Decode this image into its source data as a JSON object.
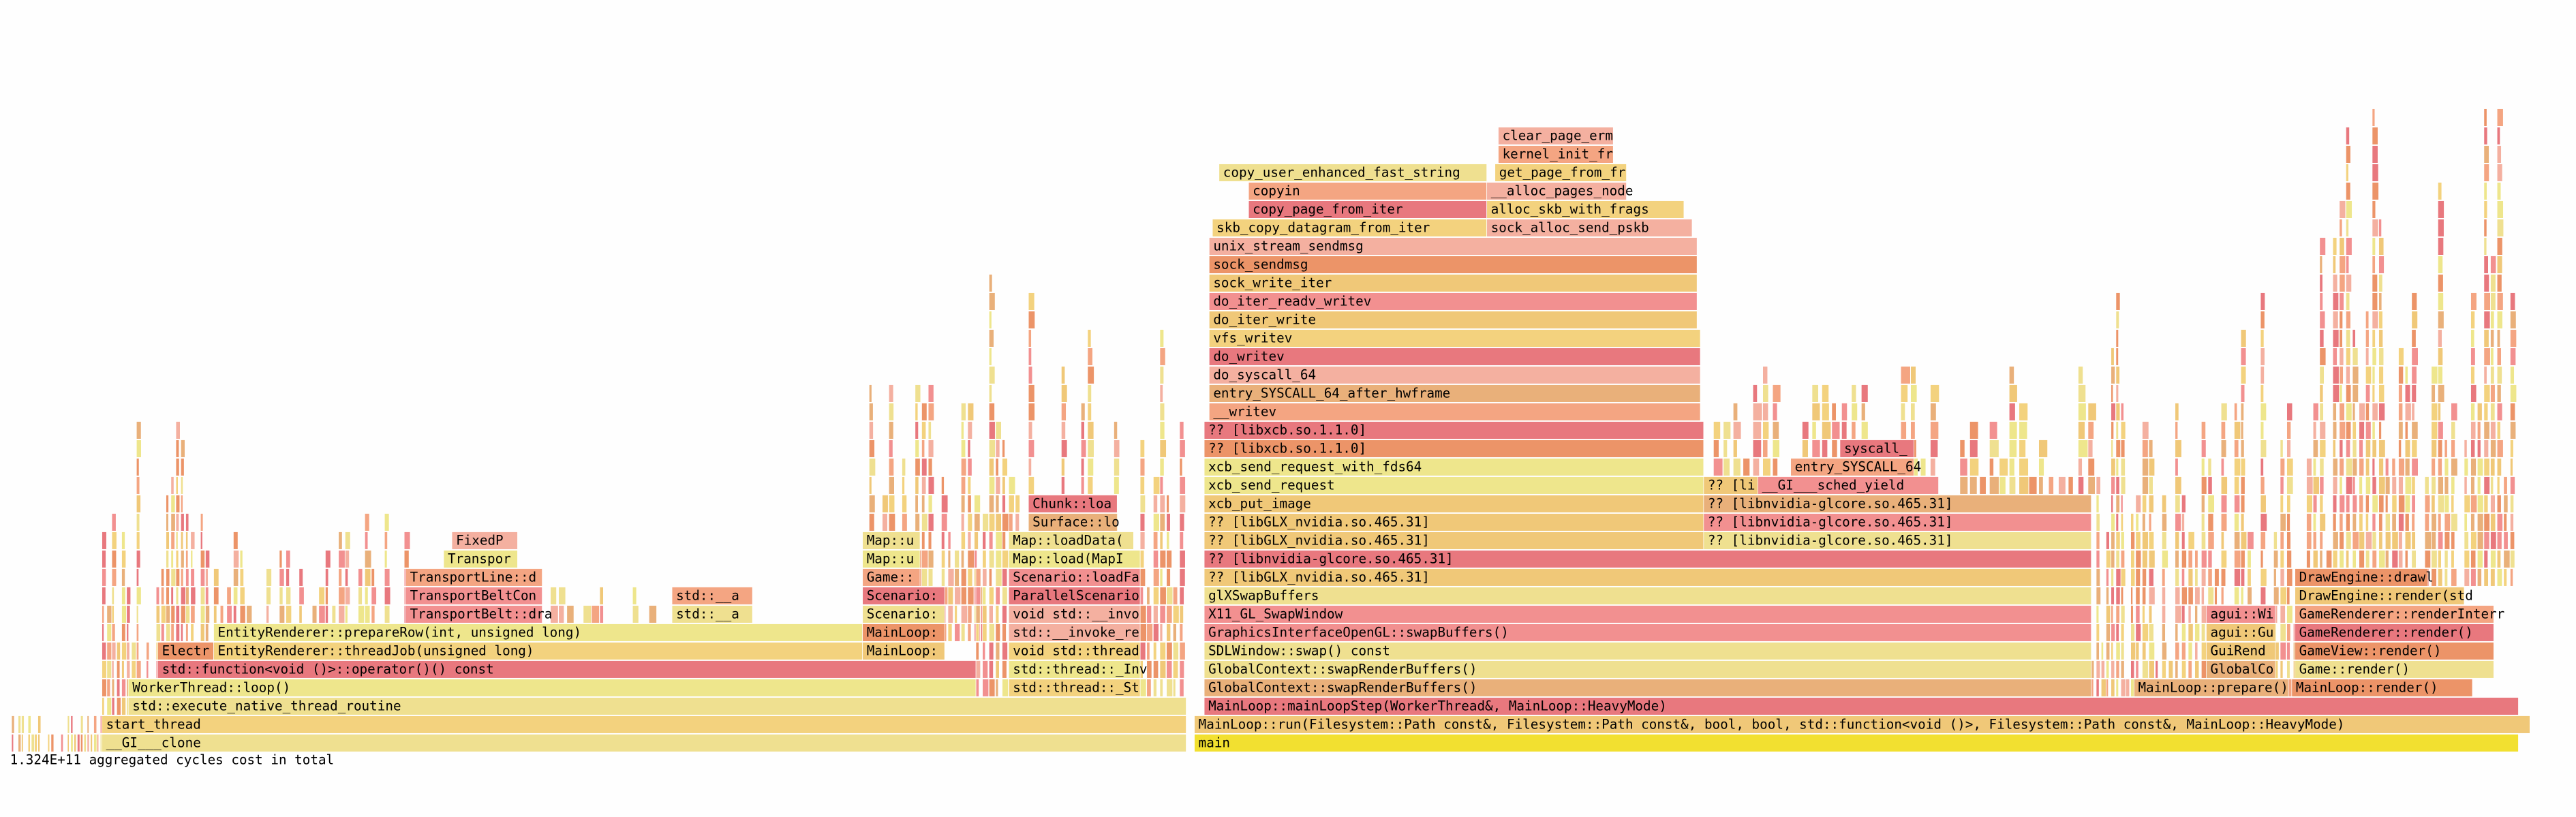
{
  "frames": [
    {
      "label": "__GI___clone"
    },
    {
      "label": "main"
    },
    {
      "label": "start_thread"
    },
    {
      "label": "MainLoop::run(Filesystem::Path const&, Filesystem::Path const&, bool, bool, std::function<void ()>, Filesystem::Path const&, MainLoop::HeavyMode)"
    },
    {
      "label": "std::execute_native_thread_routine"
    },
    {
      "label": "MainLoop::mainLoopStep(WorkerThread&, MainLoop::HeavyMode)"
    },
    {
      "label": "WorkerThread::loop()"
    },
    {
      "label": "std::thread::_St"
    },
    {
      "label": "GlobalContext::swapRenderBuffers()"
    },
    {
      "label": "MainLoop::prepare()"
    },
    {
      "label": "MainLoop::render()"
    },
    {
      "label": "std::function<void ()>::operator()() const"
    },
    {
      "label": "std::thread::_Inv"
    },
    {
      "label": "GlobalContext::swapRenderBuffers()"
    },
    {
      "label": "GlobalCo"
    },
    {
      "label": "Game::render()"
    },
    {
      "label": "Electr"
    },
    {
      "label": "EntityRenderer::threadJob(unsigned long)"
    },
    {
      "label": "MainLoop:"
    },
    {
      "label": "void std::thread"
    },
    {
      "label": "SDLWindow::swap() const"
    },
    {
      "label": "GuiRend"
    },
    {
      "label": "GameView::render()"
    },
    {
      "label": "EntityRenderer::prepareRow(int, unsigned long)"
    },
    {
      "label": "MainLoop:"
    },
    {
      "label": "std::__invoke_re"
    },
    {
      "label": "GraphicsInterfaceOpenGL::swapBuffers()"
    },
    {
      "label": "agui::Gu"
    },
    {
      "label": "GameRenderer::render()"
    },
    {
      "label": "TransportBelt::dra"
    },
    {
      "label": "std::__a"
    },
    {
      "label": "Scenario:"
    },
    {
      "label": "void std::__invo"
    },
    {
      "label": "X11_GL_SwapWindow"
    },
    {
      "label": "agui::Wi"
    },
    {
      "label": "GameRenderer::renderInterr"
    },
    {
      "label": "TransportBeltCon"
    },
    {
      "label": "std::__a"
    },
    {
      "label": "Scenario:"
    },
    {
      "label": "ParallelScenario"
    },
    {
      "label": "glXSwapBuffers"
    },
    {
      "label": "DrawEngine::render(std"
    },
    {
      "label": "TransportLine::d"
    },
    {
      "label": "Game::"
    },
    {
      "label": "Scenario::loadFa"
    },
    {
      "label": "?? [libGLX_nvidia.so.465.31]"
    },
    {
      "label": "DrawEngine::drawl"
    },
    {
      "label": "Transpor"
    },
    {
      "label": "Map::u"
    },
    {
      "label": "Map::load(MapI"
    },
    {
      "label": "?? [libnvidia-glcore.so.465.31]"
    },
    {
      "label": "FixedP"
    },
    {
      "label": "Map::u"
    },
    {
      "label": "Map::loadData("
    },
    {
      "label": "?? [libGLX_nvidia.so.465.31]"
    },
    {
      "label": "?? [libnvidia-glcore.so.465.31]"
    },
    {
      "label": "Surface::lo"
    },
    {
      "label": "?? [libGLX_nvidia.so.465.31]"
    },
    {
      "label": "?? [libnvidia-glcore.so.465.31]"
    },
    {
      "label": "Chunk::loa"
    },
    {
      "label": "xcb_put_image"
    },
    {
      "label": "?? [libnvidia-glcore.so.465.31]"
    },
    {
      "label": "xcb_send_request"
    },
    {
      "label": "?? [li"
    },
    {
      "label": "__GI___sched_yield"
    },
    {
      "label": "xcb_send_request_with_fds64"
    },
    {
      "label": "entry_SYSCALL_64"
    },
    {
      "label": "?? [libxcb.so.1.1.0]"
    },
    {
      "label": "syscall_"
    },
    {
      "label": "?? [libxcb.so.1.1.0]"
    },
    {
      "label": "__writev"
    },
    {
      "label": "entry_SYSCALL_64_after_hwframe"
    },
    {
      "label": "do_syscall_64"
    },
    {
      "label": "do_writev"
    },
    {
      "label": "vfs_writev"
    },
    {
      "label": "do_iter_write"
    },
    {
      "label": "do_iter_readv_writev"
    },
    {
      "label": "sock_write_iter"
    },
    {
      "label": "sock_sendmsg"
    },
    {
      "label": "unix_stream_sendmsg"
    },
    {
      "label": "skb_copy_datagram_from_iter"
    },
    {
      "label": "sock_alloc_send_pskb"
    },
    {
      "label": "copy_page_from_iter"
    },
    {
      "label": "alloc_skb_with_frags"
    },
    {
      "label": "copyin"
    },
    {
      "label": "__alloc_pages_node"
    },
    {
      "label": "copy_user_enhanced_fast_string"
    },
    {
      "label": "get_page_from_fr"
    },
    {
      "label": "kernel_init_fr"
    },
    {
      "label": "clear_page_erm"
    }
  ],
  "footer": "1.324E+11 aggregated cycles cost in total"
}
